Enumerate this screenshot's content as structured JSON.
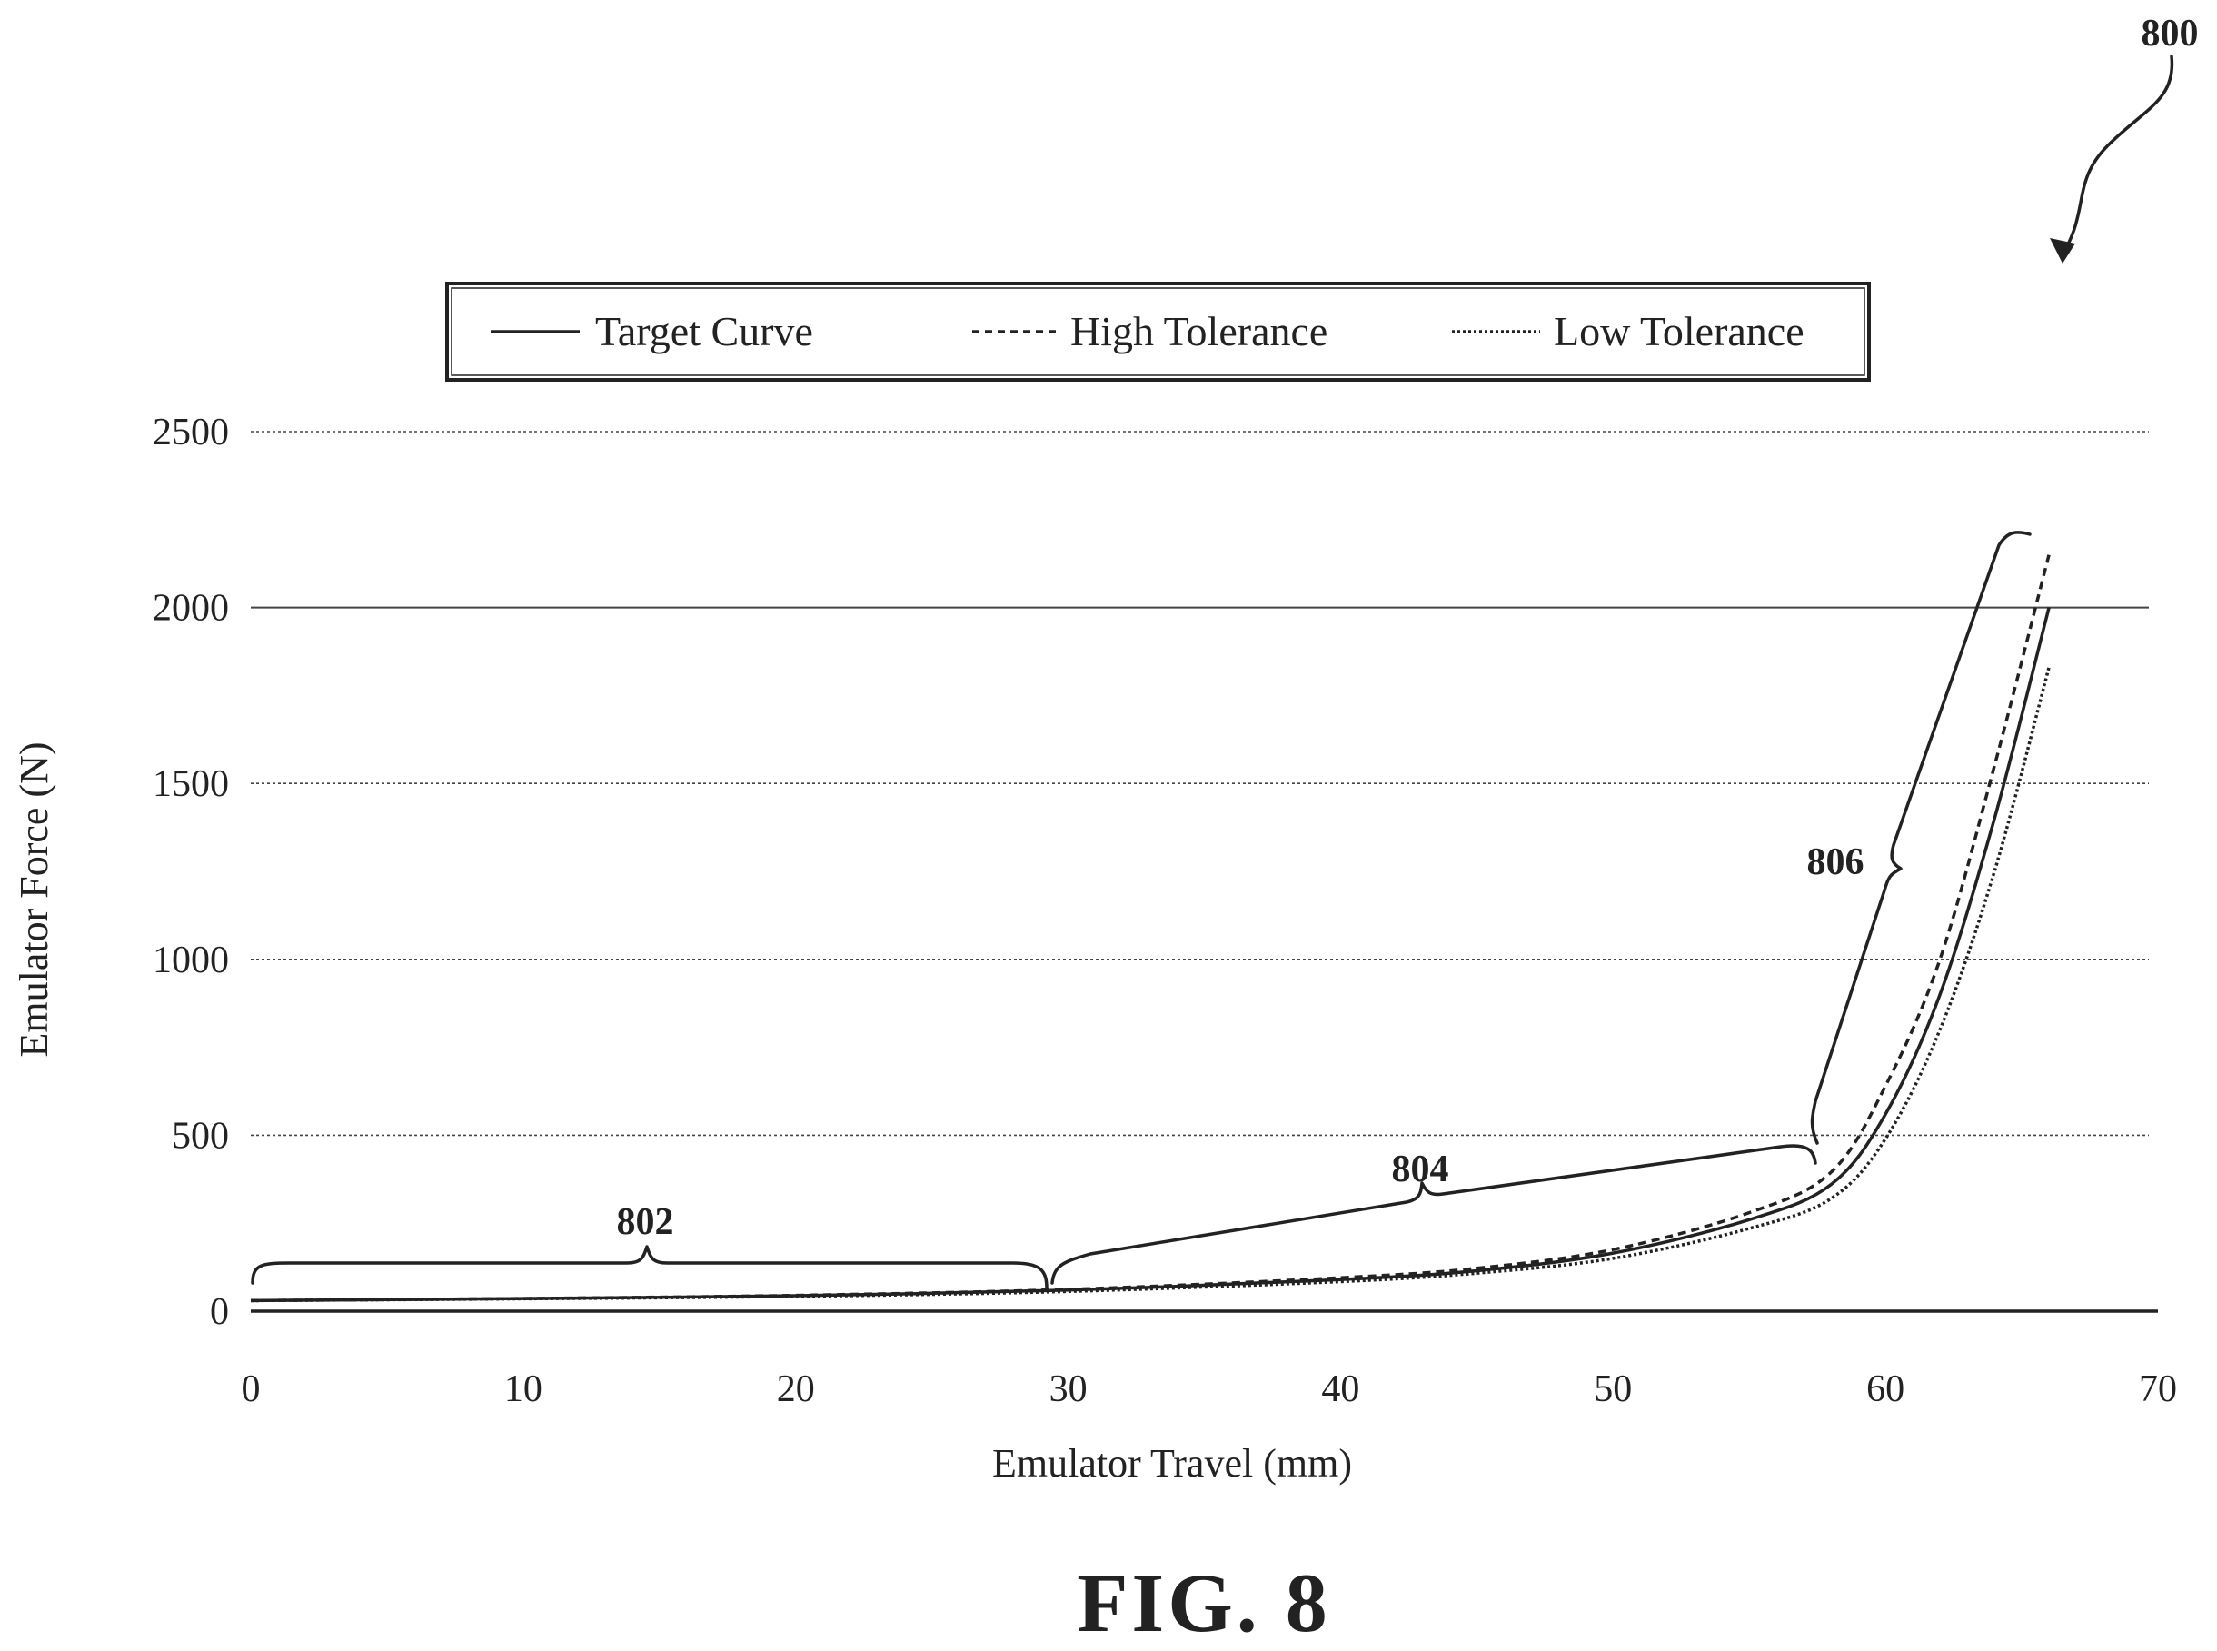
{
  "figure_label": "FIG. 8",
  "ref_figure": "800",
  "legend": {
    "target": "Target Curve",
    "high": "High Tolerance",
    "low": "Low Tolerance"
  },
  "regions": [
    {
      "label": "802",
      "x_start": 0,
      "x_end": 29
    },
    {
      "label": "804",
      "x_start": 29,
      "x_end": 57.5
    },
    {
      "label": "806",
      "x_start": 57.5,
      "x_end": 65
    }
  ],
  "chart_data": {
    "type": "line",
    "xlabel": "Emulator Travel (mm)",
    "ylabel": "Emulator Force (N)",
    "xlim": [
      0,
      70
    ],
    "ylim": [
      0,
      2500
    ],
    "xticks": [
      "0",
      "10",
      "20",
      "30",
      "40",
      "50",
      "60",
      "70"
    ],
    "yticks": [
      "0",
      "500",
      "1000",
      "1500",
      "2000",
      "2500"
    ],
    "grid": "horizontal",
    "legend_position": "top",
    "series": [
      {
        "name": "Target Curve",
        "style": "solid",
        "points": [
          [
            0,
            30
          ],
          [
            10,
            36
          ],
          [
            20,
            44
          ],
          [
            30,
            60
          ],
          [
            40,
            90
          ],
          [
            45,
            115
          ],
          [
            50,
            165
          ],
          [
            55,
            260
          ],
          [
            58,
            360
          ],
          [
            60,
            560
          ],
          [
            62,
            900
          ],
          [
            64,
            1400
          ],
          [
            66,
            2000
          ]
        ]
      },
      {
        "name": "High Tolerance",
        "style": "dashed",
        "points": [
          [
            0,
            30
          ],
          [
            10,
            36
          ],
          [
            20,
            45
          ],
          [
            30,
            62
          ],
          [
            40,
            95
          ],
          [
            45,
            122
          ],
          [
            50,
            175
          ],
          [
            55,
            280
          ],
          [
            58,
            395
          ],
          [
            60,
            640
          ],
          [
            62,
            1000
          ],
          [
            64,
            1550
          ],
          [
            66,
            2150
          ]
        ]
      },
      {
        "name": "Low Tolerance",
        "style": "dotted",
        "points": [
          [
            0,
            30
          ],
          [
            10,
            35
          ],
          [
            20,
            42
          ],
          [
            30,
            56
          ],
          [
            40,
            84
          ],
          [
            45,
            108
          ],
          [
            50,
            150
          ],
          [
            55,
            235
          ],
          [
            58,
            320
          ],
          [
            60,
            490
          ],
          [
            62,
            800
          ],
          [
            64,
            1250
          ],
          [
            66,
            1830
          ]
        ]
      },
      {
        "name": "baseline",
        "style": "solid",
        "points": [
          [
            0,
            0
          ],
          [
            70,
            0
          ]
        ]
      }
    ]
  }
}
